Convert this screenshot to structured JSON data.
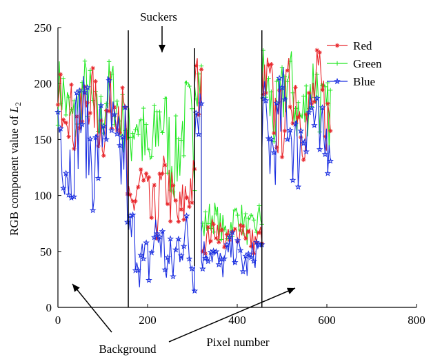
{
  "chart_data": {
    "type": "line",
    "xlabel": "Pixel number",
    "ylabel_prefix": "RGB component value of ",
    "ylabel_symbol": "L",
    "ylabel_subscript": "2",
    "xlim": [
      0,
      800
    ],
    "ylim": [
      0,
      250
    ],
    "xticks": [
      0,
      200,
      400,
      600,
      800
    ],
    "yticks": [
      0,
      50,
      100,
      150,
      200,
      250
    ],
    "grid": false,
    "legend_position": "top-right",
    "annotations": {
      "top": "Suckers",
      "bottom": "Background"
    },
    "boundary_lines_x": [
      157,
      455,
      305
    ],
    "series": [
      {
        "name": "Red",
        "color": "#e8252a",
        "marker": "asterisk",
        "values_description": "piecewise",
        "x_start": 0,
        "x_end": 610,
        "segments": [
          {
            "x": [
              0,
              155
            ],
            "base": 175,
            "amp": 30
          },
          {
            "x": [
              155,
              305
            ],
            "base": 95,
            "amp": 30
          },
          {
            "x": [
              305,
              320
            ],
            "base": 200,
            "amp": 30
          },
          {
            "x": [
              320,
              455
            ],
            "base": 65,
            "amp": 12
          },
          {
            "x": [
              455,
              610
            ],
            "base": 180,
            "amp": 35
          }
        ]
      },
      {
        "name": "Green",
        "color": "#22e822",
        "marker": "plus",
        "segments": [
          {
            "x": [
              0,
              155
            ],
            "base": 180,
            "amp": 30
          },
          {
            "x": [
              155,
              305
            ],
            "base": 150,
            "amp": 40
          },
          {
            "x": [
              305,
              320
            ],
            "base": 215,
            "amp": 25
          },
          {
            "x": [
              320,
              455
            ],
            "base": 75,
            "amp": 15
          },
          {
            "x": [
              455,
              610
            ],
            "base": 185,
            "amp": 35
          }
        ]
      },
      {
        "name": "Blue",
        "color": "#1a2ee0",
        "marker": "star",
        "segments": [
          {
            "x": [
              0,
              155
            ],
            "base": 150,
            "amp": 45
          },
          {
            "x": [
              155,
              305
            ],
            "base": 50,
            "amp": 30
          },
          {
            "x": [
              305,
              320
            ],
            "base": 190,
            "amp": 30
          },
          {
            "x": [
              320,
              455
            ],
            "base": 45,
            "amp": 15
          },
          {
            "x": [
              455,
              610
            ],
            "base": 160,
            "amp": 40
          }
        ]
      }
    ]
  }
}
